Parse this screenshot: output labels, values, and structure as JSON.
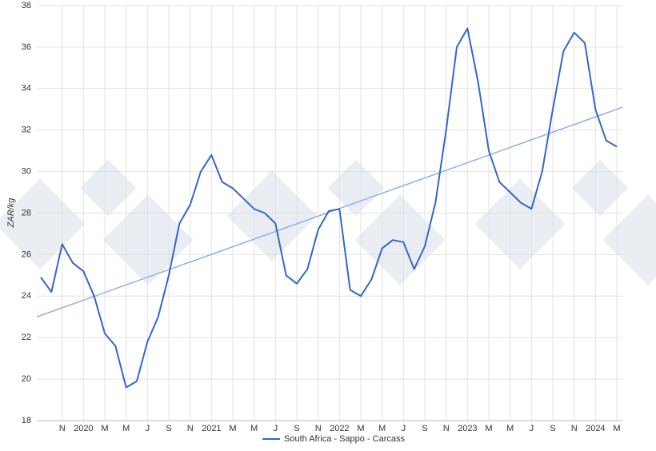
{
  "chart_data": {
    "type": "line",
    "y_label": "ZAR/kg",
    "x": [
      "2019-09",
      "2019-10",
      "2019-11",
      "2019-12",
      "2020-01",
      "2020-02",
      "2020-03",
      "2020-04",
      "2020-05",
      "2020-06",
      "2020-07",
      "2020-08",
      "2020-09",
      "2020-10",
      "2020-11",
      "2020-12",
      "2021-01",
      "2021-02",
      "2021-03",
      "2021-04",
      "2021-05",
      "2021-06",
      "2021-07",
      "2021-08",
      "2021-09",
      "2021-10",
      "2021-11",
      "2021-12",
      "2022-01",
      "2022-02",
      "2022-03",
      "2022-04",
      "2022-05",
      "2022-06",
      "2022-07",
      "2022-08",
      "2022-09",
      "2022-10",
      "2022-11",
      "2022-12",
      "2023-01",
      "2023-02",
      "2023-03",
      "2023-04",
      "2023-05",
      "2023-06",
      "2023-07",
      "2023-08",
      "2023-09",
      "2023-10",
      "2023-11",
      "2023-12",
      "2024-01",
      "2024-02",
      "2024-03"
    ],
    "series": [
      {
        "name": "South Africa - Sappo - Carcass",
        "color": "#3567c8",
        "values": [
          24.9,
          24.2,
          26.5,
          25.6,
          25.2,
          24.0,
          22.2,
          21.6,
          19.6,
          19.9,
          21.8,
          23.0,
          25.0,
          27.5,
          28.4,
          30.0,
          30.8,
          29.5,
          29.2,
          28.7,
          28.2,
          28.0,
          27.5,
          25.0,
          24.6,
          25.3,
          27.2,
          28.1,
          28.2,
          24.3,
          24.0,
          24.8,
          26.3,
          26.7,
          26.6,
          25.3,
          26.4,
          28.5,
          32.0,
          36.0,
          36.9,
          34.3,
          31.0,
          29.5,
          29.0,
          28.5,
          28.2,
          30.0,
          33.0,
          35.8,
          36.7,
          36.2,
          33.0,
          31.5,
          31.2
        ]
      }
    ],
    "trendline": {
      "color": "#8fb0e8",
      "values": [
        23.0,
        33.1
      ]
    },
    "xlim": [
      "2019-09",
      "2024-03"
    ],
    "xticks": [
      {
        "value": "2019-11",
        "label": "N"
      },
      {
        "value": "2020-01",
        "label": "2020"
      },
      {
        "value": "2020-03",
        "label": "M"
      },
      {
        "value": "2020-05",
        "label": "M"
      },
      {
        "value": "2020-07",
        "label": "J"
      },
      {
        "value": "2020-09",
        "label": "S"
      },
      {
        "value": "2020-11",
        "label": "N"
      },
      {
        "value": "2021-01",
        "label": "2021"
      },
      {
        "value": "2021-03",
        "label": "M"
      },
      {
        "value": "2021-05",
        "label": "M"
      },
      {
        "value": "2021-07",
        "label": "J"
      },
      {
        "value": "2021-09",
        "label": "S"
      },
      {
        "value": "2021-11",
        "label": "N"
      },
      {
        "value": "2022-01",
        "label": "2022"
      },
      {
        "value": "2022-03",
        "label": "M"
      },
      {
        "value": "2022-05",
        "label": "M"
      },
      {
        "value": "2022-07",
        "label": "J"
      },
      {
        "value": "2022-09",
        "label": "S"
      },
      {
        "value": "2022-11",
        "label": "N"
      },
      {
        "value": "2023-01",
        "label": "2023"
      },
      {
        "value": "2023-03",
        "label": "M"
      },
      {
        "value": "2023-05",
        "label": "M"
      },
      {
        "value": "2023-07",
        "label": "J"
      },
      {
        "value": "2023-09",
        "label": "S"
      },
      {
        "value": "2023-11",
        "label": "N"
      },
      {
        "value": "2024-01",
        "label": "2024"
      },
      {
        "value": "2024-03",
        "label": "M"
      }
    ],
    "ylim": [
      18,
      38
    ],
    "yticks": [
      18,
      20,
      22,
      24,
      26,
      28,
      30,
      32,
      34,
      36,
      38
    ],
    "grid": true
  }
}
